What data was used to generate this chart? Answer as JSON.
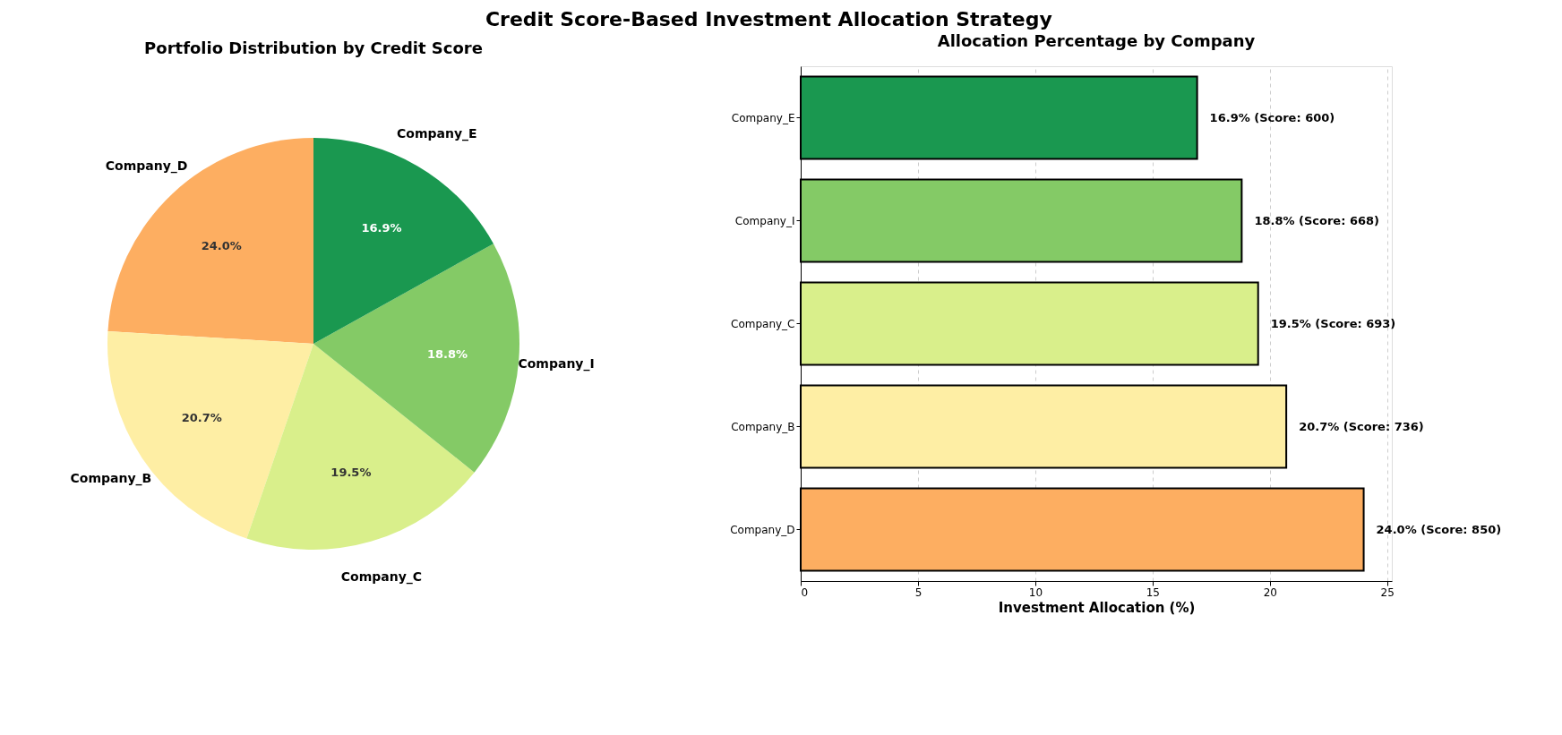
{
  "chart_data": [
    {
      "type": "pie",
      "title": "Credit Score-Based Investment Allocation Strategy",
      "subtitle": "Portfolio Distribution by Credit Score",
      "categories": [
        "Company_D",
        "Company_B",
        "Company_C",
        "Company_I",
        "Company_E"
      ],
      "values": [
        24.0,
        20.7,
        19.5,
        18.8,
        16.9
      ],
      "colors": [
        "#fdae61",
        "#feeea4",
        "#d9ef8b",
        "#84ca66",
        "#1a9850"
      ],
      "value_labels": [
        "24.0%",
        "20.7%",
        "19.5%",
        "18.8%",
        "16.9%"
      ],
      "legend": false
    },
    {
      "type": "bar",
      "orientation": "horizontal",
      "title": "Allocation Percentage by Company",
      "xlabel": "Investment Allocation (%)",
      "categories": [
        "Company_E",
        "Company_I",
        "Company_C",
        "Company_B",
        "Company_D"
      ],
      "values": [
        16.9,
        18.8,
        19.5,
        20.7,
        24.0
      ],
      "colors": [
        "#1a9850",
        "#84ca66",
        "#d9ef8b",
        "#feeea4",
        "#fdae61"
      ],
      "value_labels": [
        "16.9% (Score: 600)",
        "18.8% (Score: 668)",
        "19.5% (Score: 693)",
        "20.7% (Score: 736)",
        "24.0% (Score: 850)"
      ],
      "xlim": [
        0,
        25.2
      ],
      "xticks": [
        0,
        5,
        10,
        15,
        20,
        25
      ],
      "grid": "x",
      "legend": false
    }
  ]
}
